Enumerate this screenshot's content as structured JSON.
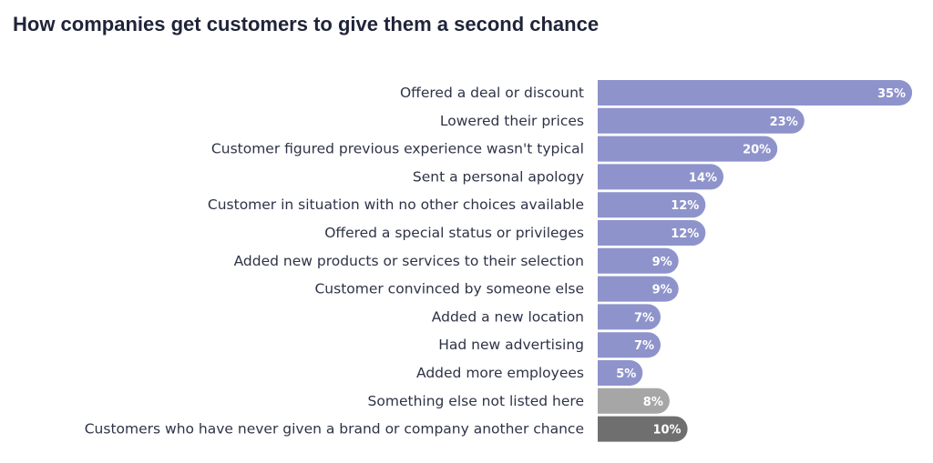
{
  "chart_data": {
    "type": "bar",
    "orientation": "horizontal",
    "title": "How companies get customers to give them a second chance",
    "categories": [
      "Offered a deal or discount",
      "Lowered their prices",
      "Customer figured previous experience wasn't typical",
      "Sent a personal apology",
      "Customer in situation with no other choices available",
      "Offered a special status or privileges",
      "Added new products or services to their selection",
      "Customer convinced by someone else",
      "Added a new location",
      "Had new advertising",
      "Added more employees",
      "Something else not listed here",
      "Customers who have never given a brand or company another chance"
    ],
    "values": [
      35,
      23,
      20,
      14,
      12,
      12,
      9,
      9,
      7,
      7,
      5,
      8,
      10
    ],
    "value_labels": [
      "35%",
      "23%",
      "20%",
      "14%",
      "12%",
      "12%",
      "9%",
      "9%",
      "7%",
      "7%",
      "5%",
      "8%",
      "10%"
    ],
    "colors": [
      "#8e93cb",
      "#8e93cb",
      "#8e93cb",
      "#8e93cb",
      "#8e93cb",
      "#8e93cb",
      "#8e93cb",
      "#8e93cb",
      "#8e93cb",
      "#8e93cb",
      "#8e93cb",
      "#a6a6a6",
      "#6f6f6f"
    ],
    "unit": "%",
    "grid": false
  }
}
